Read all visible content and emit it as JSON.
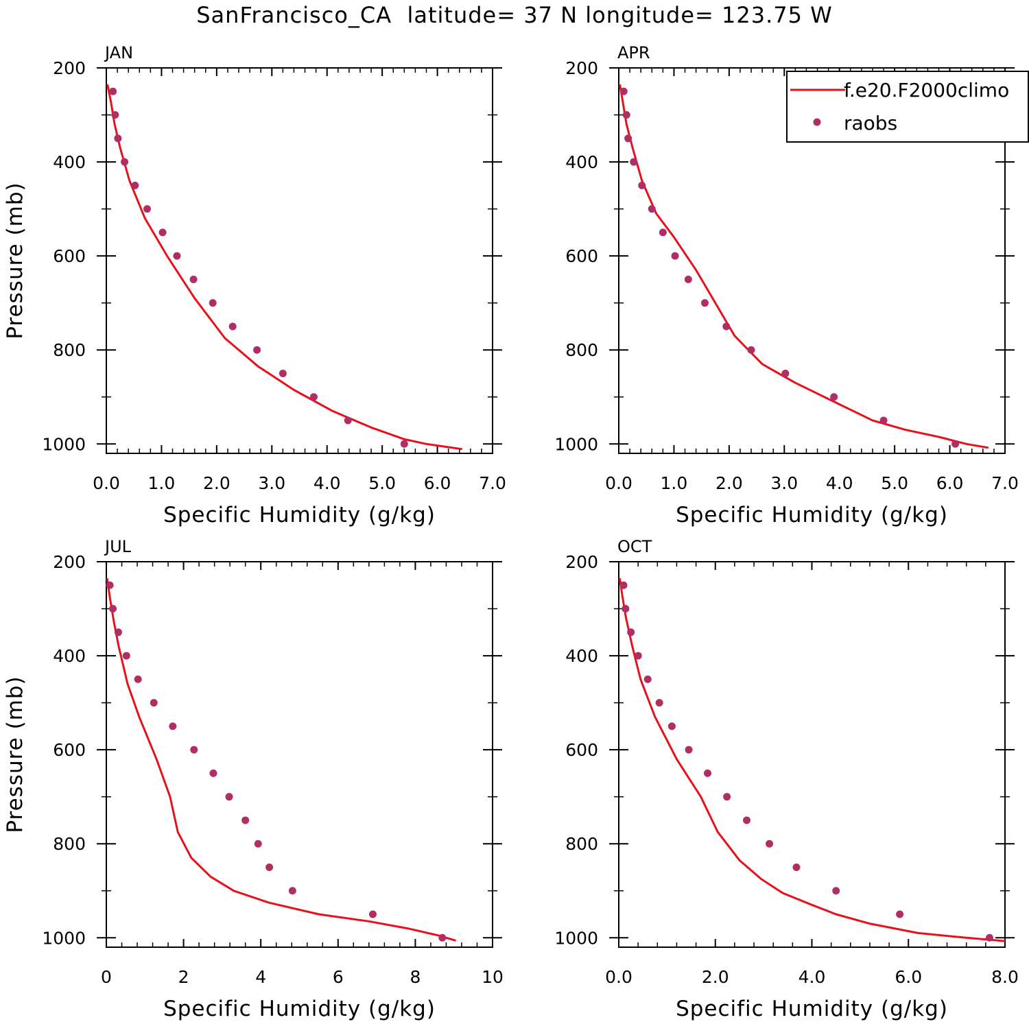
{
  "figure": {
    "title": "SanFrancisco_CA  latitude= 37 N longitude= 123.75 W"
  },
  "colors": {
    "model_line": "#e8101a",
    "obs_marker": "#b02e63",
    "axis": "#000000"
  },
  "legend": {
    "placement": "top-right of APR panel",
    "entries": [
      {
        "label": "f.e20.F2000climo",
        "symbol": "line"
      },
      {
        "label": "raobs",
        "symbol": "dot"
      }
    ]
  },
  "chart_data": [
    {
      "type": "line",
      "panel_label": "JAN",
      "xlabel": "Specific Humidity (g/kg)",
      "ylabel": "Pressure (mb)",
      "xlim": [
        0,
        7
      ],
      "ylim": [
        1020,
        200
      ],
      "xticks": [
        0,
        1,
        2,
        3,
        4,
        5,
        6,
        7
      ],
      "xtick_labels": [
        "0.0",
        "1.0",
        "2.0",
        "3.0",
        "4.0",
        "5.0",
        "6.0",
        "7.0"
      ],
      "yticks": [
        200,
        400,
        600,
        800,
        1000
      ],
      "ytick_labels": [
        "200",
        "400",
        "600",
        "800",
        "1000"
      ],
      "grid": false,
      "series": [
        {
          "name": "f.e20.F2000climo",
          "kind": "line",
          "x": [
            0.02,
            0.08,
            0.15,
            0.25,
            0.42,
            0.7,
            1.1,
            1.6,
            2.15,
            2.75,
            3.4,
            4.1,
            4.8,
            5.4,
            5.8,
            6.15,
            6.45
          ],
          "y": [
            235,
            270,
            320,
            370,
            440,
            520,
            600,
            690,
            775,
            835,
            885,
            930,
            965,
            990,
            1000,
            1006,
            1011
          ]
        },
        {
          "name": "raobs",
          "kind": "scatter",
          "x": [
            0.12,
            0.16,
            0.21,
            0.33,
            0.52,
            0.74,
            1.02,
            1.28,
            1.58,
            1.93,
            2.29,
            2.73,
            3.2,
            3.76,
            4.38,
            5.4
          ],
          "y": [
            250,
            300,
            350,
            400,
            450,
            500,
            550,
            600,
            650,
            700,
            750,
            800,
            850,
            900,
            950,
            1000
          ]
        }
      ]
    },
    {
      "type": "line",
      "panel_label": "APR",
      "xlabel": "Specific Humidity (g/kg)",
      "ylabel": "",
      "xlim": [
        0,
        7
      ],
      "ylim": [
        1020,
        200
      ],
      "xticks": [
        0,
        1,
        2,
        3,
        4,
        5,
        6,
        7
      ],
      "xtick_labels": [
        "0.0",
        "1.0",
        "2.0",
        "3.0",
        "4.0",
        "5.0",
        "6.0",
        "7.0"
      ],
      "yticks": [
        200,
        400,
        600,
        800,
        1000
      ],
      "ytick_labels": [
        "200",
        "400",
        "600",
        "800",
        "1000"
      ],
      "grid": false,
      "series": [
        {
          "name": "f.e20.F2000climo",
          "kind": "line",
          "x": [
            0.02,
            0.07,
            0.14,
            0.25,
            0.42,
            0.68,
            1.0,
            1.4,
            1.75,
            2.1,
            2.6,
            3.2,
            3.9,
            4.6,
            5.2,
            5.8,
            6.3,
            6.7
          ],
          "y": [
            235,
            270,
            320,
            370,
            440,
            510,
            560,
            630,
            700,
            770,
            830,
            870,
            910,
            950,
            970,
            985,
            1000,
            1008
          ]
        },
        {
          "name": "raobs",
          "kind": "scatter",
          "x": [
            0.09,
            0.14,
            0.17,
            0.27,
            0.42,
            0.6,
            0.8,
            1.02,
            1.26,
            1.56,
            1.95,
            2.4,
            3.02,
            3.9,
            4.8,
            6.1
          ],
          "y": [
            250,
            300,
            350,
            400,
            450,
            500,
            550,
            600,
            650,
            700,
            750,
            800,
            850,
            900,
            950,
            1000
          ]
        }
      ]
    },
    {
      "type": "line",
      "panel_label": "JUL",
      "xlabel": "Specific Humidity (g/kg)",
      "ylabel": "Pressure (mb)",
      "xlim": [
        0,
        10
      ],
      "ylim": [
        1020,
        200
      ],
      "xticks": [
        0,
        2,
        4,
        6,
        8,
        10
      ],
      "xtick_labels": [
        "0",
        "2",
        "4",
        "6",
        "8",
        "10"
      ],
      "yticks": [
        200,
        400,
        600,
        800,
        1000
      ],
      "ytick_labels": [
        "200",
        "400",
        "600",
        "800",
        "1000"
      ],
      "grid": false,
      "series": [
        {
          "name": "f.e20.F2000climo",
          "kind": "line",
          "x": [
            0.02,
            0.1,
            0.2,
            0.32,
            0.55,
            0.85,
            1.3,
            1.65,
            1.85,
            2.2,
            2.7,
            3.3,
            4.2,
            5.5,
            6.8,
            7.8,
            8.6,
            9.05
          ],
          "y": [
            235,
            280,
            330,
            380,
            460,
            530,
            620,
            700,
            775,
            830,
            870,
            900,
            925,
            950,
            965,
            980,
            995,
            1006
          ]
        },
        {
          "name": "raobs",
          "kind": "scatter",
          "x": [
            0.09,
            0.17,
            0.31,
            0.52,
            0.82,
            1.23,
            1.72,
            2.27,
            2.77,
            3.18,
            3.6,
            3.93,
            4.22,
            4.82,
            6.9,
            8.7
          ],
          "y": [
            250,
            300,
            350,
            400,
            450,
            500,
            550,
            600,
            650,
            700,
            750,
            800,
            850,
            900,
            950,
            1000
          ]
        }
      ]
    },
    {
      "type": "line",
      "panel_label": "OCT",
      "xlabel": "Specific Humidity (g/kg)",
      "ylabel": "",
      "xlim": [
        0,
        8
      ],
      "ylim": [
        1020,
        200
      ],
      "xticks": [
        0,
        2,
        4,
        6,
        8
      ],
      "xtick_labels": [
        "0.0",
        "2.0",
        "4.0",
        "6.0",
        "8.0"
      ],
      "yticks": [
        200,
        400,
        600,
        800,
        1000
      ],
      "ytick_labels": [
        "200",
        "400",
        "600",
        "800",
        "1000"
      ],
      "grid": false,
      "series": [
        {
          "name": "f.e20.F2000climo",
          "kind": "line",
          "x": [
            0.02,
            0.07,
            0.15,
            0.28,
            0.45,
            0.75,
            1.2,
            1.7,
            2.05,
            2.5,
            2.95,
            3.4,
            4.0,
            4.5,
            5.2,
            6.2,
            7.2,
            8.0
          ],
          "y": [
            235,
            270,
            320,
            380,
            450,
            530,
            620,
            700,
            775,
            835,
            875,
            905,
            930,
            950,
            970,
            990,
            1000,
            1007
          ]
        },
        {
          "name": "raobs",
          "kind": "scatter",
          "x": [
            0.1,
            0.14,
            0.25,
            0.4,
            0.6,
            0.84,
            1.1,
            1.45,
            1.84,
            2.24,
            2.65,
            3.12,
            3.68,
            4.5,
            5.82,
            7.68
          ],
          "y": [
            250,
            300,
            350,
            400,
            450,
            500,
            550,
            600,
            650,
            700,
            750,
            800,
            850,
            900,
            950,
            1000
          ]
        }
      ]
    }
  ]
}
